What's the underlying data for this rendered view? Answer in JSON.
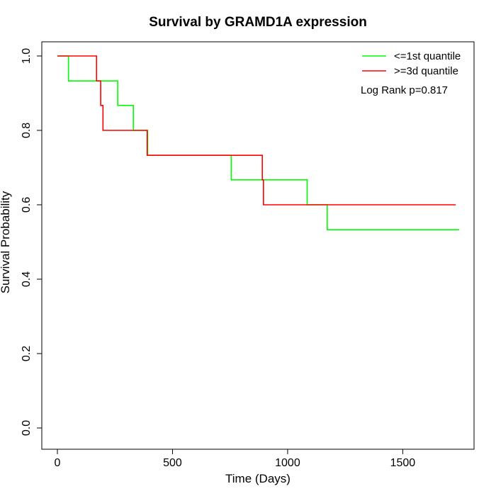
{
  "chart_data": {
    "type": "line",
    "title": "Survival by GRAMD1A expression",
    "xlabel": "Time (Days)",
    "ylabel": "Survival Probability",
    "xlim": [
      0,
      1800
    ],
    "ylim": [
      0.0,
      1.0
    ],
    "x_ticks": [
      0,
      500,
      1000,
      1500
    ],
    "x_tick_labels": [
      "0",
      "500",
      "1000",
      "1500"
    ],
    "y_ticks": [
      0.0,
      0.2,
      0.4,
      0.6,
      0.8,
      1.0
    ],
    "y_tick_labels": [
      "0.0",
      "0.2",
      "0.4",
      "0.6",
      "0.8",
      "1.0"
    ],
    "grid": false,
    "legend_position": "top-right",
    "annotation": "Log Rank p=0.817",
    "series": [
      {
        "name": "<=1st quantile",
        "color": "#00ff00",
        "step": true,
        "points": [
          [
            0,
            1.0
          ],
          [
            48,
            0.933
          ],
          [
            262,
            0.867
          ],
          [
            330,
            0.8
          ],
          [
            392,
            0.733
          ],
          [
            755,
            0.667
          ],
          [
            1085,
            0.6
          ],
          [
            1172,
            0.533
          ],
          [
            1745,
            0.533
          ]
        ]
      },
      {
        "name": ">=3d quantile",
        "color": "#ff0000",
        "step": true,
        "points": [
          [
            0,
            1.0
          ],
          [
            170,
            0.933
          ],
          [
            188,
            0.867
          ],
          [
            198,
            0.8
          ],
          [
            390,
            0.733
          ],
          [
            890,
            0.667
          ],
          [
            895,
            0.6
          ],
          [
            1730,
            0.6
          ]
        ]
      }
    ]
  }
}
